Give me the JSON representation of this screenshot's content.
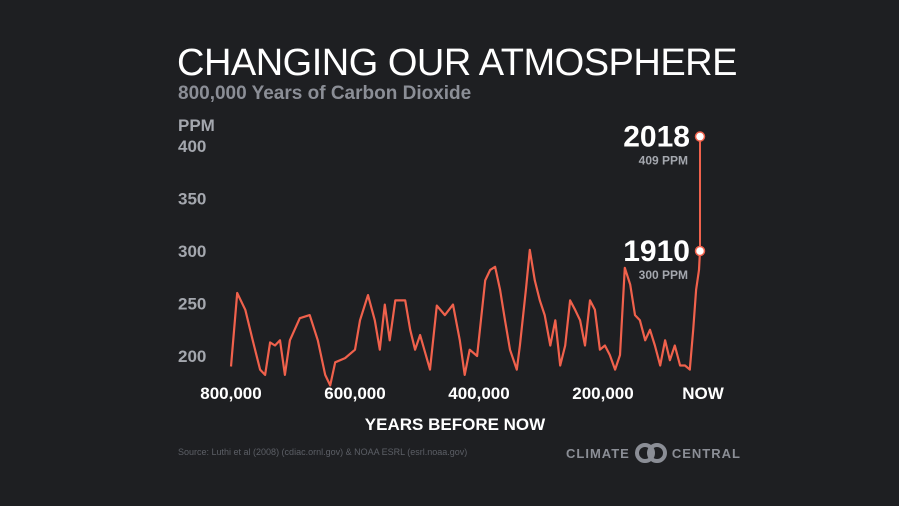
{
  "title": "CHANGING OUR ATMOSPHERE",
  "subtitle": "800,000 Years of Carbon Dioxide",
  "source": "Source: Luthi et al (2008) (cdiac.ornl.gov) & NOAA ESRL (esrl.noaa.gov)",
  "logo": {
    "left": "CLIMATE",
    "right": "CENTRAL"
  },
  "colors": {
    "background": "#1e1f22",
    "line": "#f0614c",
    "axis_text": "#a4a7ae"
  },
  "chart_data": {
    "type": "line",
    "title": "CHANGING OUR ATMOSPHERE",
    "subtitle": "800,000 Years of Carbon Dioxide",
    "ylabel": "PPM",
    "xlabel": "YEARS BEFORE NOW",
    "ylim": [
      180,
      410
    ],
    "y_ticks": [
      "400",
      "350",
      "300",
      "250",
      "200"
    ],
    "y_tick_values": [
      400,
      350,
      300,
      250,
      200
    ],
    "x_ticks": [
      "800,000",
      "600,000",
      "400,000",
      "200,000",
      "NOW"
    ],
    "x_tick_values": [
      800000,
      600000,
      400000,
      200000,
      0
    ],
    "grid": false,
    "series": [
      {
        "x_years_before_now": [
          800000,
          790000,
          777000,
          765000,
          753000,
          745000,
          737000,
          729000,
          721000,
          713000,
          705000,
          689000,
          673000,
          660000,
          648000,
          640000,
          632000,
          616000,
          600000,
          592000,
          579000,
          568000,
          560000,
          552000,
          544000,
          535000,
          519000,
          511000,
          503000,
          495000,
          479000,
          468000,
          455000,
          442000,
          431000,
          423000,
          415000,
          403000,
          390000,
          382000,
          374000,
          366000,
          358000,
          350000,
          339000,
          334000,
          324000,
          318000,
          310000,
          302000,
          294000,
          285000,
          277000,
          269000,
          261000,
          253000,
          245000,
          237000,
          229000,
          221000,
          213000,
          205000,
          196000,
          186000,
          175000,
          165000,
          155000,
          144000,
          134000,
          124000,
          113000,
          103000,
          93000,
          82000,
          72000,
          62000,
          52000,
          41000,
          31000,
          21000,
          14000,
          8000,
          2000,
          0
        ],
        "ppm": [
          190,
          260,
          244,
          215,
          187,
          182,
          213,
          210,
          215,
          182,
          215,
          236,
          239,
          215,
          182,
          172,
          194,
          198,
          206,
          234,
          258,
          234,
          206,
          249,
          215,
          253,
          253,
          225,
          206,
          220,
          187,
          248,
          239,
          249,
          215,
          182,
          206,
          200,
          272,
          282,
          285,
          263,
          234,
          206,
          187,
          210,
          265,
          301,
          272,
          253,
          239,
          210,
          234,
          191,
          210,
          253,
          244,
          234,
          210,
          253,
          244,
          206,
          210,
          201,
          187,
          201,
          284,
          268,
          239,
          234,
          215,
          225,
          210,
          191,
          215,
          196,
          210,
          191,
          191,
          187,
          225,
          263,
          282,
          300
        ]
      }
    ],
    "annotations": [
      {
        "label": "1910",
        "sublabel": "300 PPM",
        "ppm": 300
      },
      {
        "label": "2018",
        "sublabel": "409 PPM",
        "ppm": 409
      }
    ]
  }
}
